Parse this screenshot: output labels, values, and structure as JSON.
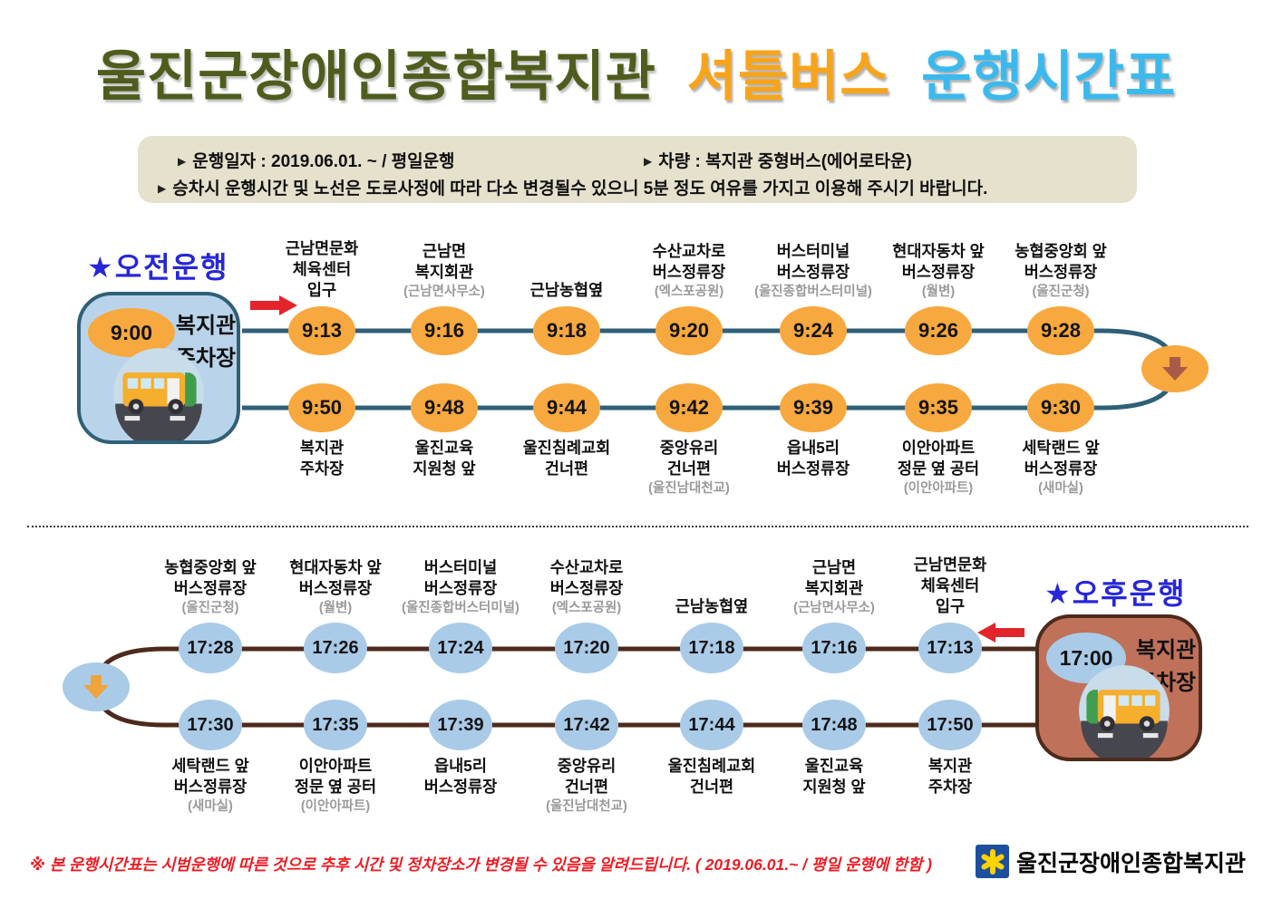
{
  "title": {
    "part1": "울진군장애인종합복지관",
    "part2": "셔틀버스",
    "part3": "운행시간표"
  },
  "info": {
    "line1_left": "운행일자 : 2019.06.01. ~ / 평일운행",
    "line1_right": "차량 : 복지관 중형버스(에어로타운)",
    "line2": "승차시 운행시간 및 노선은 도로사정에 따라 다소 변경될수 있으니 5분 정도 여유를 가지고 이용해 주시기 바랍니다."
  },
  "morning": {
    "section_label": "★오전운행",
    "depot": {
      "time": "9:00",
      "name": "복지관\n주차장"
    },
    "outbound": [
      {
        "time": "9:13",
        "name": "근남면문화\n체육센터\n입구",
        "sub": ""
      },
      {
        "time": "9:16",
        "name": "근남면\n복지회관",
        "sub": "(근남면사무소)"
      },
      {
        "time": "9:18",
        "name": "근남농협옆",
        "sub": ""
      },
      {
        "time": "9:20",
        "name": "수산교차로\n버스정류장",
        "sub": "(엑스포공원)"
      },
      {
        "time": "9:24",
        "name": "버스터미널\n버스정류장",
        "sub": "(울진종합버스터미널)"
      },
      {
        "time": "9:26",
        "name": "현대자동차 앞\n버스정류장",
        "sub": "(월변)"
      },
      {
        "time": "9:28",
        "name": "농협중앙회 앞\n버스정류장",
        "sub": "(울진군청)"
      }
    ],
    "return": [
      {
        "time": "9:30",
        "name": "세탁랜드 앞\n버스정류장",
        "sub": "(새마실)"
      },
      {
        "time": "9:35",
        "name": "이안아파트\n정문 옆 공터",
        "sub": "(이안아파트)"
      },
      {
        "time": "9:39",
        "name": "읍내5리\n버스정류장",
        "sub": ""
      },
      {
        "time": "9:42",
        "name": "중앙유리\n건너편",
        "sub": "(울진남대천교)"
      },
      {
        "time": "9:44",
        "name": "울진침례교회\n건너편",
        "sub": ""
      },
      {
        "time": "9:48",
        "name": "울진교육\n지원청 앞",
        "sub": ""
      },
      {
        "time": "9:50",
        "name": "복지관\n주차장",
        "sub": ""
      }
    ]
  },
  "afternoon": {
    "section_label": "★오후운행",
    "depot": {
      "time": "17:00",
      "name": "복지관\n주차장"
    },
    "outbound": [
      {
        "time": "17:13",
        "name": "근남면문화\n체육센터\n입구",
        "sub": ""
      },
      {
        "time": "17:16",
        "name": "근남면\n복지회관",
        "sub": "(근남면사무소)"
      },
      {
        "time": "17:18",
        "name": "근남농협옆",
        "sub": ""
      },
      {
        "time": "17:20",
        "name": "수산교차로\n버스정류장",
        "sub": "(엑스포공원)"
      },
      {
        "time": "17:24",
        "name": "버스터미널\n버스정류장",
        "sub": "(울진종합버스터미널)"
      },
      {
        "time": "17:26",
        "name": "현대자동차 앞\n버스정류장",
        "sub": "(월변)"
      },
      {
        "time": "17:28",
        "name": "농협중앙회 앞\n버스정류장",
        "sub": "(울진군청)"
      }
    ],
    "return": [
      {
        "time": "17:30",
        "name": "세탁랜드 앞\n버스정류장",
        "sub": "(새마실)"
      },
      {
        "time": "17:35",
        "name": "이안아파트\n정문 옆 공터",
        "sub": "(이안아파트)"
      },
      {
        "time": "17:39",
        "name": "읍내5리\n버스정류장",
        "sub": ""
      },
      {
        "time": "17:42",
        "name": "중앙유리\n건너편",
        "sub": "(울진남대천교)"
      },
      {
        "time": "17:44",
        "name": "울진침례교회\n건너편",
        "sub": ""
      },
      {
        "time": "17:48",
        "name": "울진교육\n지원청 앞",
        "sub": ""
      },
      {
        "time": "17:50",
        "name": "복지관\n주차장",
        "sub": ""
      }
    ]
  },
  "footer": {
    "note": "※ 본 운행시간표는 시범운행에 따른 것으로 추후 시간 및 정차장소가 변경될 수 있음을 알려드립니다. ( 2019.06.01.~ / 평일 운행에 한함 )",
    "logo_text": "울진군장애인종합복지관"
  },
  "colors": {
    "title_green": "#4e5d1d",
    "title_orange": "#f7a41d",
    "title_blue": "#3bb9ed",
    "morning_accent": "#f7a83e",
    "morning_line": "#2e6077",
    "morning_box_bg": "#b9d4ea",
    "afternoon_accent": "#a9cbe8",
    "afternoon_line": "#4c2a1c",
    "afternoon_box_bg": "#c0715a",
    "section_label_blue": "#2727d8",
    "note_red": "#ed1c24",
    "info_bg": "#e6e1cd",
    "logo_blue": "#1d4f9e"
  }
}
